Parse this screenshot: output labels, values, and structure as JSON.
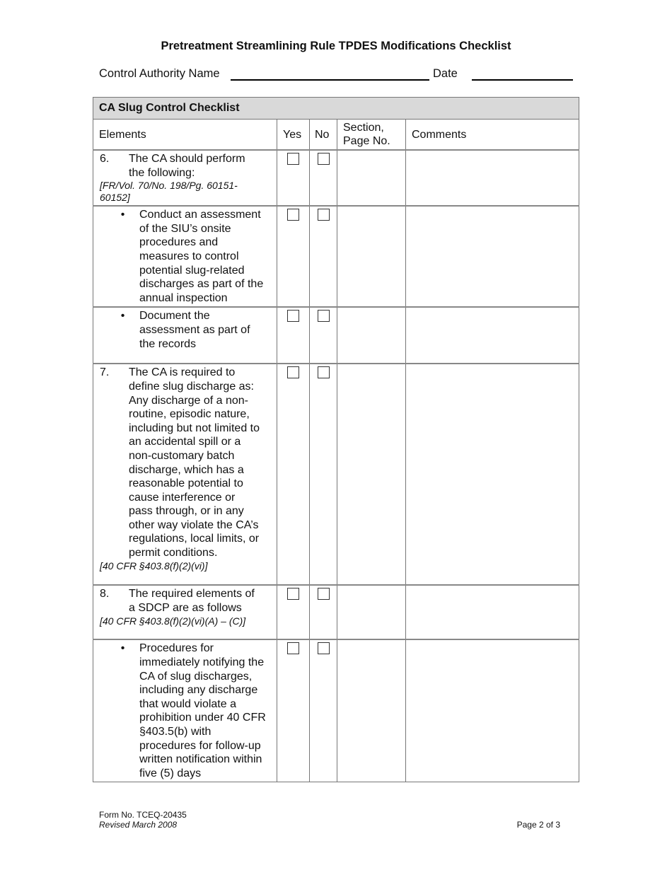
{
  "title": "Pretreatment Streamlining Rule TPDES Modifications Checklist",
  "header": {
    "control_authority_label": "Control Authority Name",
    "date_label": "Date"
  },
  "table": {
    "caption": "CA Slug Control Checklist",
    "columns": [
      "Elements",
      "Yes",
      "No",
      "Section,\nPage No.",
      "Comments"
    ],
    "rows": [
      {
        "type": "numbered",
        "num": "6.",
        "text": "The CA should perform\nthe following:",
        "cite": " [FR/Vol. 70/No. 198/Pg. 60151-\n60152]",
        "yes": false,
        "no": false,
        "h": 78
      },
      {
        "type": "bullet",
        "num": "•",
        "text": "Conduct an assessment\nof the SIU’s onsite\nprocedures and\nmeasures to control\npotential slug-related\ndischarges as part of the\nannual inspection",
        "cite": "",
        "yes": false,
        "no": false,
        "h": 139
      },
      {
        "type": "bullet",
        "num": "•",
        "text": "Document the\nassessment as part of\nthe records",
        "cite": "",
        "yes": false,
        "no": false,
        "h": 80
      },
      {
        "type": "numbered",
        "num": "7.",
        "text": "The CA is required to\ndefine slug discharge as:\nAny discharge of a non-\nroutine, episodic nature,\nincluding but not limited to\nan accidental spill or a\nnon-customary batch\ndischarge, which has a\nreasonable potential to\ncause interference or\npass through, or in any\nother way violate the CA’s\nregulations, local limits, or\npermit conditions.",
        "cite": "[40 CFR §403.8(f)(2)(vi)]",
        "yes": false,
        "no": false,
        "h": 313
      },
      {
        "type": "numbered",
        "num": "8.",
        "text": "The required elements of\na SDCP are as follows",
        "cite": "[40 CFR §403.8(f)(2)(vi)(A) – (C)]",
        "yes": false,
        "no": false,
        "h": 77
      },
      {
        "type": "bullet",
        "num": "•",
        "text": "Procedures for\nimmediately notifying the\nCA of slug discharges,\nincluding any discharge\nthat would violate a\nprohibition under 40 CFR\n§403.5(b) with\nprocedures for follow-up\nwritten notification within\nfive (5) days",
        "cite": "",
        "yes": false,
        "no": false,
        "h": 199
      }
    ]
  },
  "footer": {
    "form_no": "Form No. TCEQ-20435",
    "revised": "Revised March 2008",
    "page": "Page 2 of 3"
  }
}
